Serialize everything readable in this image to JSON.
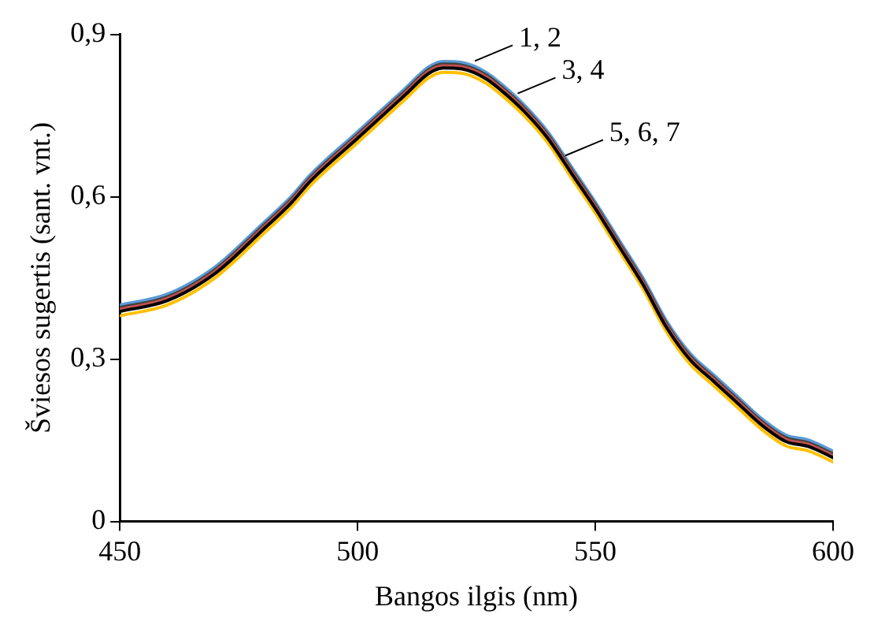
{
  "chart_data": {
    "type": "line",
    "xlabel": "Bangos ilgis (nm)",
    "ylabel": "Šviesos sugertis (sant. vnt.)",
    "x": [
      450,
      460,
      470,
      480,
      486,
      490,
      500,
      510,
      515,
      518,
      522,
      527,
      530,
      535,
      540,
      545,
      550,
      555,
      560,
      565,
      570,
      575,
      580,
      585,
      590,
      595,
      600
    ],
    "xlim": [
      450,
      600
    ],
    "xticks": [
      450,
      500,
      550,
      600
    ],
    "ylim": [
      0,
      0.9
    ],
    "yticks": [
      0,
      {
        "value": 0.3,
        "label": "0,3"
      },
      {
        "value": 0.6,
        "label": "0,6"
      },
      {
        "value": 0.9,
        "label": "0,9"
      }
    ],
    "grid": false,
    "legend": false,
    "marker": "none",
    "line_style": "solid",
    "series": [
      {
        "color": "#5b9bd5",
        "values": [
          0.4,
          0.42,
          0.47,
          0.55,
          0.6,
          0.64,
          0.72,
          0.8,
          0.84,
          0.85,
          0.848,
          0.83,
          0.81,
          0.77,
          0.72,
          0.655,
          0.59,
          0.52,
          0.45,
          0.37,
          0.31,
          0.27,
          0.23,
          0.19,
          0.16,
          0.15,
          0.13
        ]
      },
      {
        "color": "#404040",
        "values": [
          0.395,
          0.415,
          0.465,
          0.545,
          0.595,
          0.635,
          0.715,
          0.795,
          0.835,
          0.845,
          0.843,
          0.825,
          0.805,
          0.765,
          0.715,
          0.65,
          0.585,
          0.515,
          0.445,
          0.365,
          0.305,
          0.265,
          0.225,
          0.185,
          0.155,
          0.145,
          0.125
        ]
      },
      {
        "color": "#c0504d",
        "values": [
          0.392,
          0.412,
          0.462,
          0.542,
          0.592,
          0.632,
          0.712,
          0.792,
          0.832,
          0.842,
          0.84,
          0.822,
          0.802,
          0.762,
          0.712,
          0.647,
          0.582,
          0.512,
          0.442,
          0.362,
          0.302,
          0.262,
          0.222,
          0.182,
          0.152,
          0.142,
          0.122
        ]
      },
      {
        "color": "#ffc000",
        "values": [
          0.38,
          0.4,
          0.45,
          0.53,
          0.58,
          0.62,
          0.7,
          0.78,
          0.82,
          0.83,
          0.828,
          0.81,
          0.79,
          0.75,
          0.7,
          0.635,
          0.57,
          0.5,
          0.43,
          0.35,
          0.29,
          0.25,
          0.21,
          0.17,
          0.14,
          0.13,
          0.11
        ]
      },
      {
        "color": "#000000",
        "values": [
          0.388,
          0.408,
          0.458,
          0.538,
          0.588,
          0.628,
          0.708,
          0.788,
          0.828,
          0.838,
          0.836,
          0.818,
          0.798,
          0.758,
          0.708,
          0.643,
          0.578,
          0.508,
          0.438,
          0.358,
          0.298,
          0.258,
          0.218,
          0.178,
          0.148,
          0.138,
          0.118
        ]
      }
    ],
    "annotations": [
      {
        "text": "1, 2",
        "x": 524,
        "y": 0.845
      },
      {
        "text": "3, 4",
        "x": 533,
        "y": 0.785
      },
      {
        "text": "5, 6, 7",
        "x": 543,
        "y": 0.67
      }
    ]
  }
}
